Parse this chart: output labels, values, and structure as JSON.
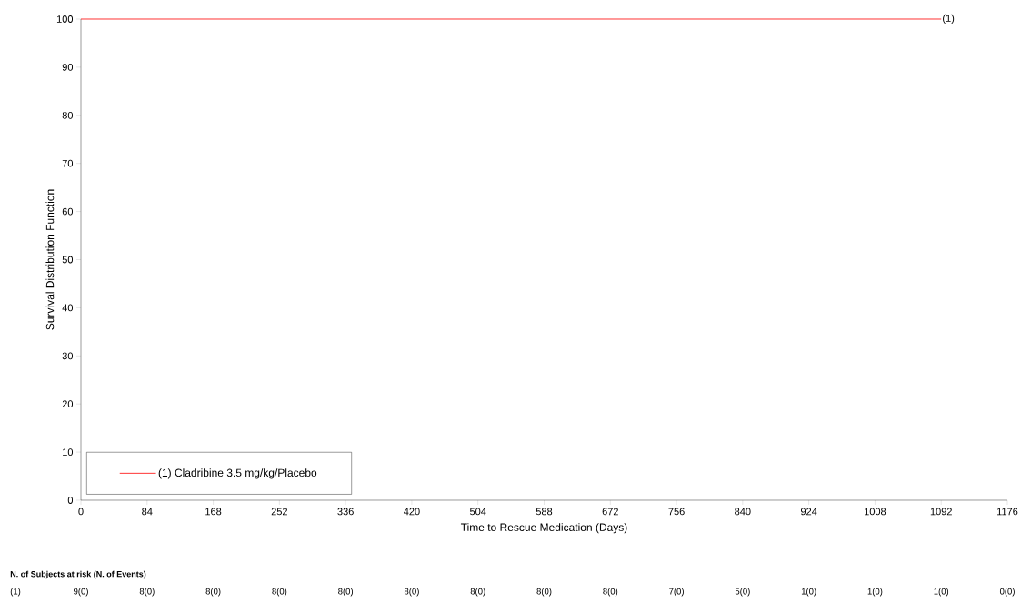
{
  "chart_data": {
    "type": "step",
    "xlabel": "Time to Rescue Medication (Days)",
    "ylabel": "Survival Distribution Function",
    "series": [
      {
        "name": "(1) Cladribine 3.5 mg/kg/Placebo",
        "color": "#ff0000",
        "x": [
          0,
          1092
        ],
        "values": [
          100,
          100
        ]
      }
    ],
    "xlim": [
      0,
      1176
    ],
    "xticks": [
      0,
      84,
      168,
      252,
      336,
      420,
      504,
      588,
      672,
      756,
      840,
      924,
      1008,
      1092,
      1176
    ],
    "ylim": [
      0,
      100
    ],
    "yticks": [
      0,
      10,
      20,
      30,
      40,
      50,
      60,
      70,
      80,
      90,
      100
    ],
    "legend": "bottom left",
    "annotations": [
      {
        "text": "(1)",
        "x": 1092,
        "y": 100
      },
      "N. of Subjects at risk (N. of Events)",
      "(1)",
      "9(0)",
      "8(0)",
      "8(0)",
      "8(0)",
      "8(0)",
      "8(0)",
      "8(0)",
      "8(0)",
      "8(0)",
      "7(0)",
      "5(0)",
      "1(0)",
      "1(0)",
      "1(0)",
      "0(0)"
    ]
  }
}
